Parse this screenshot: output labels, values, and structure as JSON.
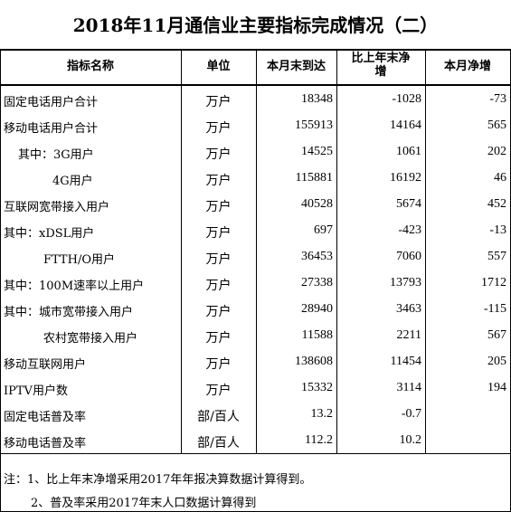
{
  "header": {
    "title": "2018年11月通信业主要指标完成情况（二）"
  },
  "table": {
    "columns": [
      "指标名称",
      "单位",
      "本月末到达",
      "比上年末净增",
      "本月净增"
    ],
    "rows": [
      [
        "固定电话用户合计",
        "万户",
        18348,
        -1028,
        -73
      ],
      [
        "移动电话用户合计",
        "万户",
        155913,
        14164,
        565
      ],
      [
        "其中：3G用户",
        "万户",
        14525,
        1061,
        202
      ],
      [
        "4G用户",
        "万户",
        115881,
        16192,
        46
      ],
      [
        "互联网宽带接入用户",
        "万户",
        40528,
        5674,
        452
      ],
      [
        "其中：xDSL用户",
        "万户",
        697,
        -423,
        -13
      ],
      [
        "FTTH/O用户",
        "万户",
        36453,
        7060,
        557
      ],
      [
        "其中：100M速率以上用户",
        "万户",
        27338,
        13793,
        1712
      ],
      [
        "其中：城市宽带接入用户",
        "万户",
        28940,
        3463,
        -115
      ],
      [
        "农村宽带接入用户",
        "万户",
        11588,
        2211,
        567
      ],
      [
        "移动互联网用户",
        "万户",
        138608,
        11454,
        205
      ],
      [
        "IPTV用户数",
        "万户",
        15332,
        3114,
        194
      ],
      [
        "固定电话普及率",
        "部/百人",
        13.2,
        -0.7
      ],
      [
        "移动电话普及率",
        "部/百人",
        112.2,
        10.2
      ]
    ]
  },
  "notes": [
    "注：1、比上年末净增采用2017年年报决算数据计算得到。",
    "2、普及率采用2017年末人口数据计算得到"
  ]
}
